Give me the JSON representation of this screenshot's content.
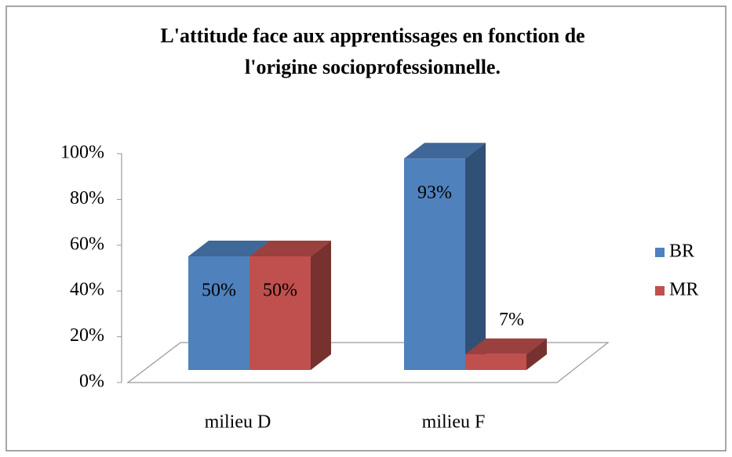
{
  "chart_data": {
    "type": "bar3d",
    "title": "L'attitude face aux apprentissages en fonction de l'origine socioprofessionnelle.",
    "categories": [
      "milieu D",
      "milieu F"
    ],
    "series": [
      {
        "name": "BR",
        "color": "#4f81bd",
        "values": [
          50,
          93
        ],
        "value_labels": [
          "50%",
          "93%"
        ]
      },
      {
        "name": "MR",
        "color": "#c0504d",
        "values": [
          50,
          7
        ],
        "value_labels": [
          "50%",
          "7%"
        ]
      }
    ],
    "ylim": [
      0,
      100
    ],
    "yticks": [
      {
        "value": 0,
        "label": "0%"
      },
      {
        "value": 20,
        "label": "20%"
      },
      {
        "value": 40,
        "label": "40%"
      },
      {
        "value": 60,
        "label": "60%"
      },
      {
        "value": 80,
        "label": "80%"
      },
      {
        "value": 100,
        "label": "100%"
      }
    ],
    "legend": "right"
  }
}
